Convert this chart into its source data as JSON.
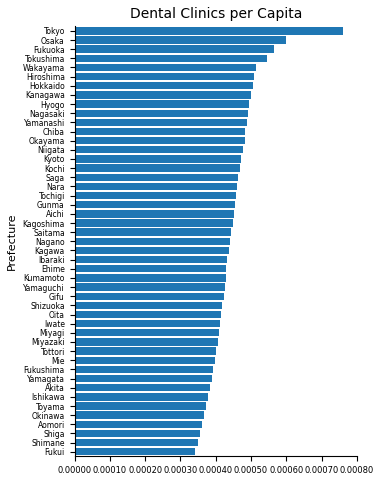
{
  "title": "Dental Clinics per Capita",
  "xlabel": "",
  "ylabel": "Prefecture",
  "prefectures": [
    "Tokyo",
    "Osaka",
    "Fukuoka",
    "Tokushima",
    "Wakayama",
    "Hiroshima",
    "Hokkaido",
    "Kanagawa",
    "Hyogo",
    "Nagasaki",
    "Yamanashi",
    "Chiba",
    "Okayama",
    "Niigata",
    "Kyoto",
    "Kochi",
    "Saga",
    "Nara",
    "Tochigi",
    "Gunma",
    "Aichi",
    "Kagoshima",
    "Saitama",
    "Nagano",
    "Kagawa",
    "Ibaraki",
    "Ehime",
    "Kumamoto",
    "Yamaguchi",
    "Gifu",
    "Shizuoka",
    "Oita",
    "Iwate",
    "Miyagi",
    "Miyazaki",
    "Tottori",
    "Mie",
    "Fukushima",
    "Yamagata",
    "Akita",
    "Ishikawa",
    "Toyama",
    "Okinawa",
    "Aomori",
    "Shiga",
    "Shimane",
    "Fukui"
  ],
  "values": [
    0.00076,
    0.0006,
    0.000565,
    0.000545,
    0.000515,
    0.000508,
    0.000505,
    0.0005,
    0.000495,
    0.000492,
    0.000488,
    0.000484,
    0.000482,
    0.000477,
    0.000472,
    0.000468,
    0.000464,
    0.000461,
    0.000458,
    0.000455,
    0.000452,
    0.000448,
    0.000443,
    0.00044,
    0.000437,
    0.000433,
    0.00043,
    0.000428,
    0.000425,
    0.000422,
    0.000419,
    0.000415,
    0.000411,
    0.000408,
    0.000405,
    0.000402,
    0.000398,
    0.000393,
    0.000388,
    0.000383,
    0.000378,
    0.000373,
    0.000368,
    0.000362,
    0.000356,
    0.00035,
    0.000342
  ],
  "bar_color": "#1f77b4",
  "xlim": [
    0,
    0.0008
  ],
  "figsize": [
    3.81,
    4.82
  ],
  "dpi": 100,
  "title_fontsize": 10,
  "ylabel_fontsize": 8,
  "ytick_fontsize": 5.5,
  "xtick_fontsize": 6
}
